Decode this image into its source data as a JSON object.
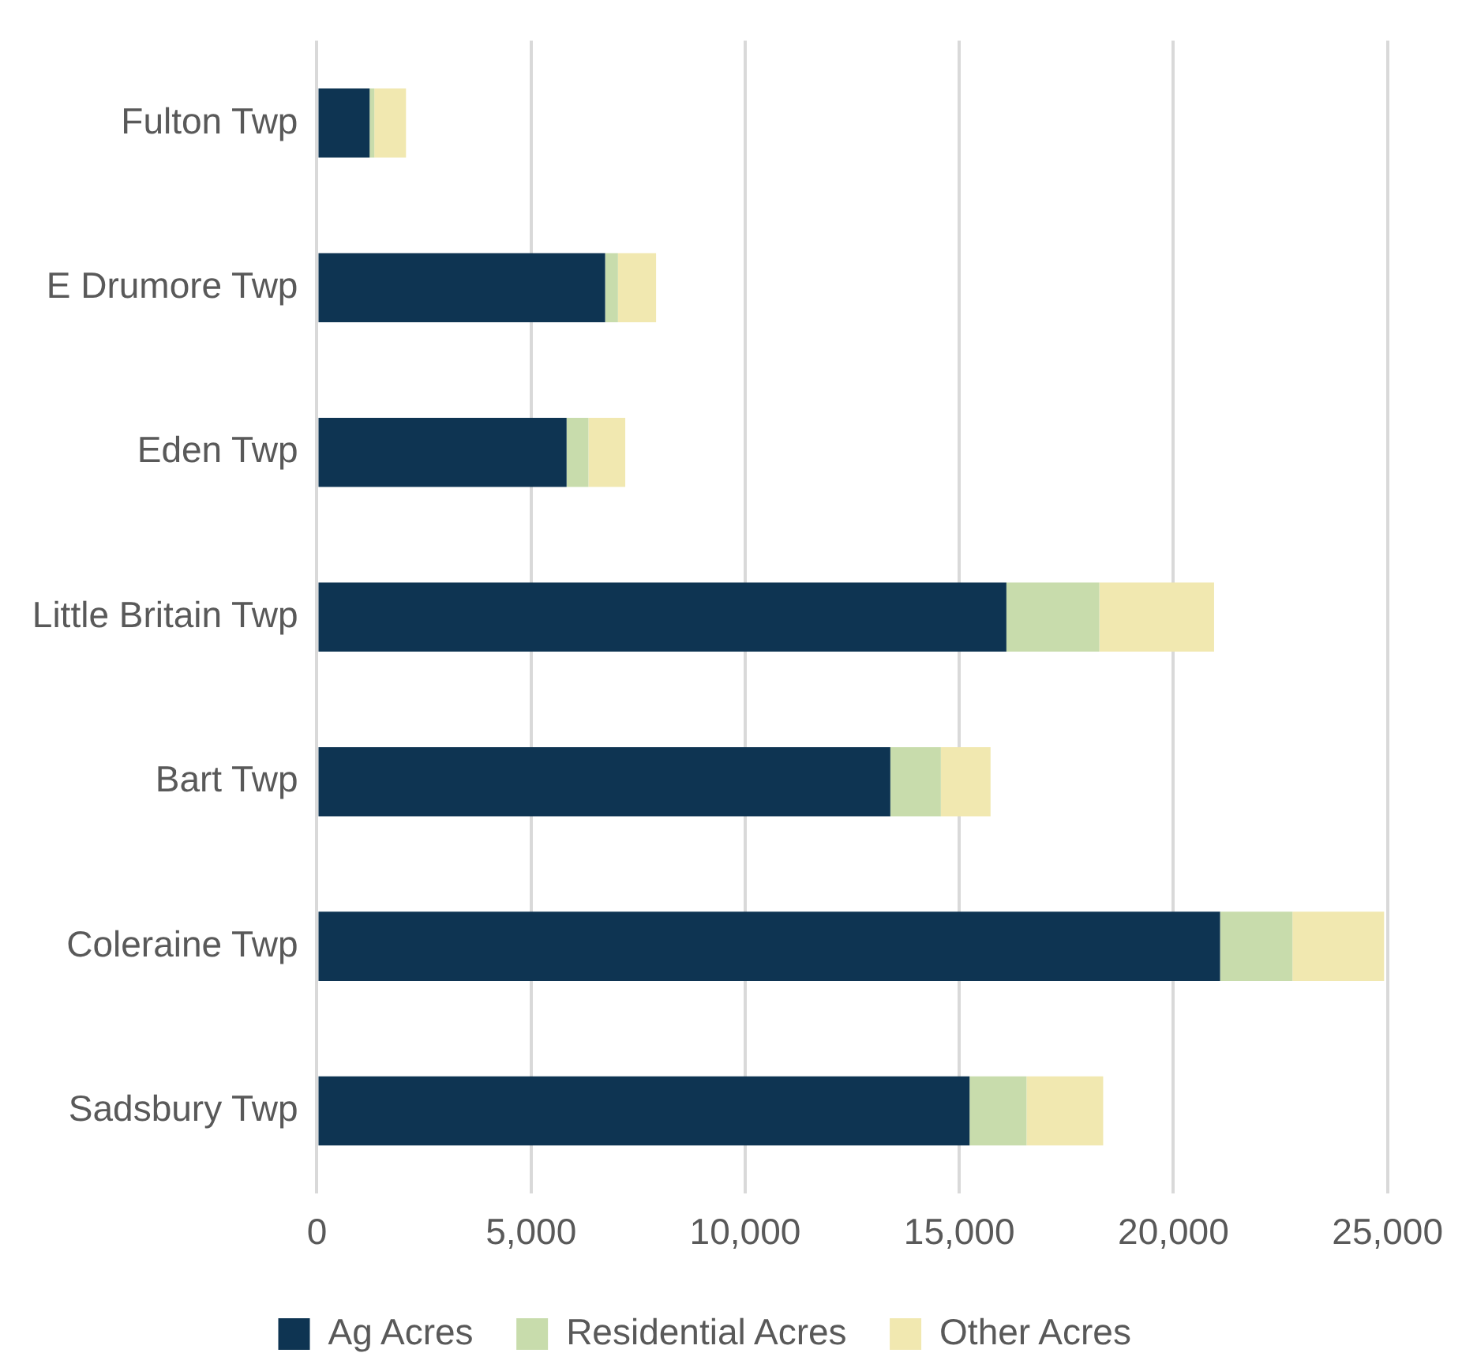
{
  "chart_data": {
    "type": "bar",
    "orientation": "horizontal",
    "stacked": true,
    "categories": [
      "Fulton Twp",
      "E Drumore Twp",
      "Eden Twp",
      "Little Britain Twp",
      "Bart Twp",
      "Coleraine Twp",
      "Sadsbury Twp"
    ],
    "series": [
      {
        "name": "Ag Acres",
        "color": "#0e3452",
        "values": [
          1230,
          6730,
          5830,
          16100,
          13390,
          21090,
          15240
        ]
      },
      {
        "name": "Residential Acres",
        "color": "#c8dcac",
        "values": [
          110,
          300,
          510,
          2170,
          1180,
          1690,
          1330
        ]
      },
      {
        "name": "Other Acres",
        "color": "#f1e8b0",
        "values": [
          740,
          890,
          860,
          2680,
          1160,
          2140,
          1790
        ]
      }
    ],
    "xlim": [
      0,
      25000
    ],
    "xticks": [
      {
        "value": 0,
        "label": "0"
      },
      {
        "value": 5000,
        "label": "5,000"
      },
      {
        "value": 10000,
        "label": "10,000"
      },
      {
        "value": 15000,
        "label": "15,000"
      },
      {
        "value": 20000,
        "label": "20,000"
      },
      {
        "value": 25000,
        "label": "25,000"
      }
    ],
    "grid": "x",
    "legend": "bottom"
  }
}
